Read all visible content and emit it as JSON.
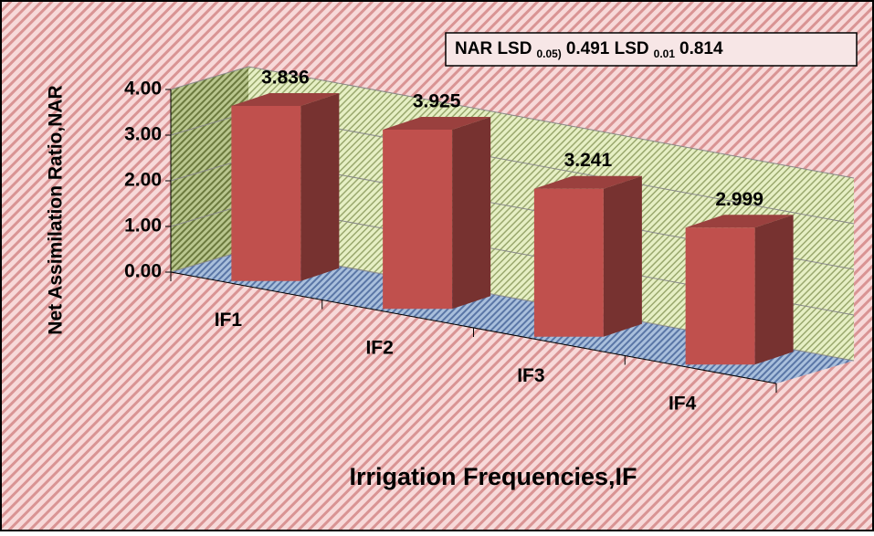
{
  "chart_data": {
    "type": "bar3d",
    "annotation": {
      "name": "NAR LSD",
      "sub1": "0.05)",
      "val1": "0.491 LSD",
      "sub2": "0.01",
      "val2": "0.814"
    },
    "x_label": "Irrigation Frequencies,IF",
    "y_label": "Net Assimilation Ratio,NAR",
    "categories": [
      "IF1",
      "IF2",
      "IF3",
      "IF4"
    ],
    "values": [
      3.836,
      3.925,
      3.241,
      2.999
    ],
    "color": "#c0504d",
    "ylim": [
      0,
      4
    ],
    "yticks": [
      {
        "value": 0,
        "label": "0.00"
      },
      {
        "value": 1,
        "label": "1.00"
      },
      {
        "value": 2,
        "label": "2.00"
      },
      {
        "value": 3,
        "label": "3.00"
      },
      {
        "value": 4,
        "label": "4.00"
      }
    ],
    "grid": true
  }
}
